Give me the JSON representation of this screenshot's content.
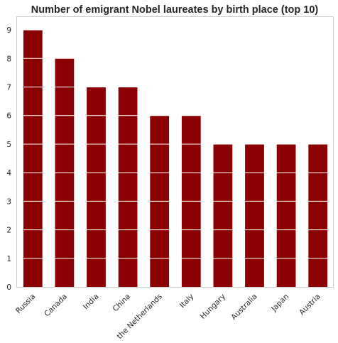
{
  "chart_data": {
    "type": "bar",
    "title": "Number of emigrant Nobel laureates by birth place (top 10)",
    "xlabel": "",
    "ylabel": "",
    "categories": [
      "Russia",
      "Canada",
      "India",
      "China",
      "the Netherlands",
      "Italy",
      "Hungary",
      "Australia",
      "Japan",
      "Austria"
    ],
    "values": [
      9,
      8,
      7,
      7,
      6,
      6,
      5,
      5,
      5,
      5
    ],
    "ylim": [
      0,
      9.45
    ],
    "yticks": [
      "0",
      "1",
      "2",
      "3",
      "4",
      "5",
      "6",
      "7",
      "8",
      "9"
    ],
    "grid": "horizontal lines, white",
    "bar_color": "#8b0000",
    "legend": "none"
  }
}
